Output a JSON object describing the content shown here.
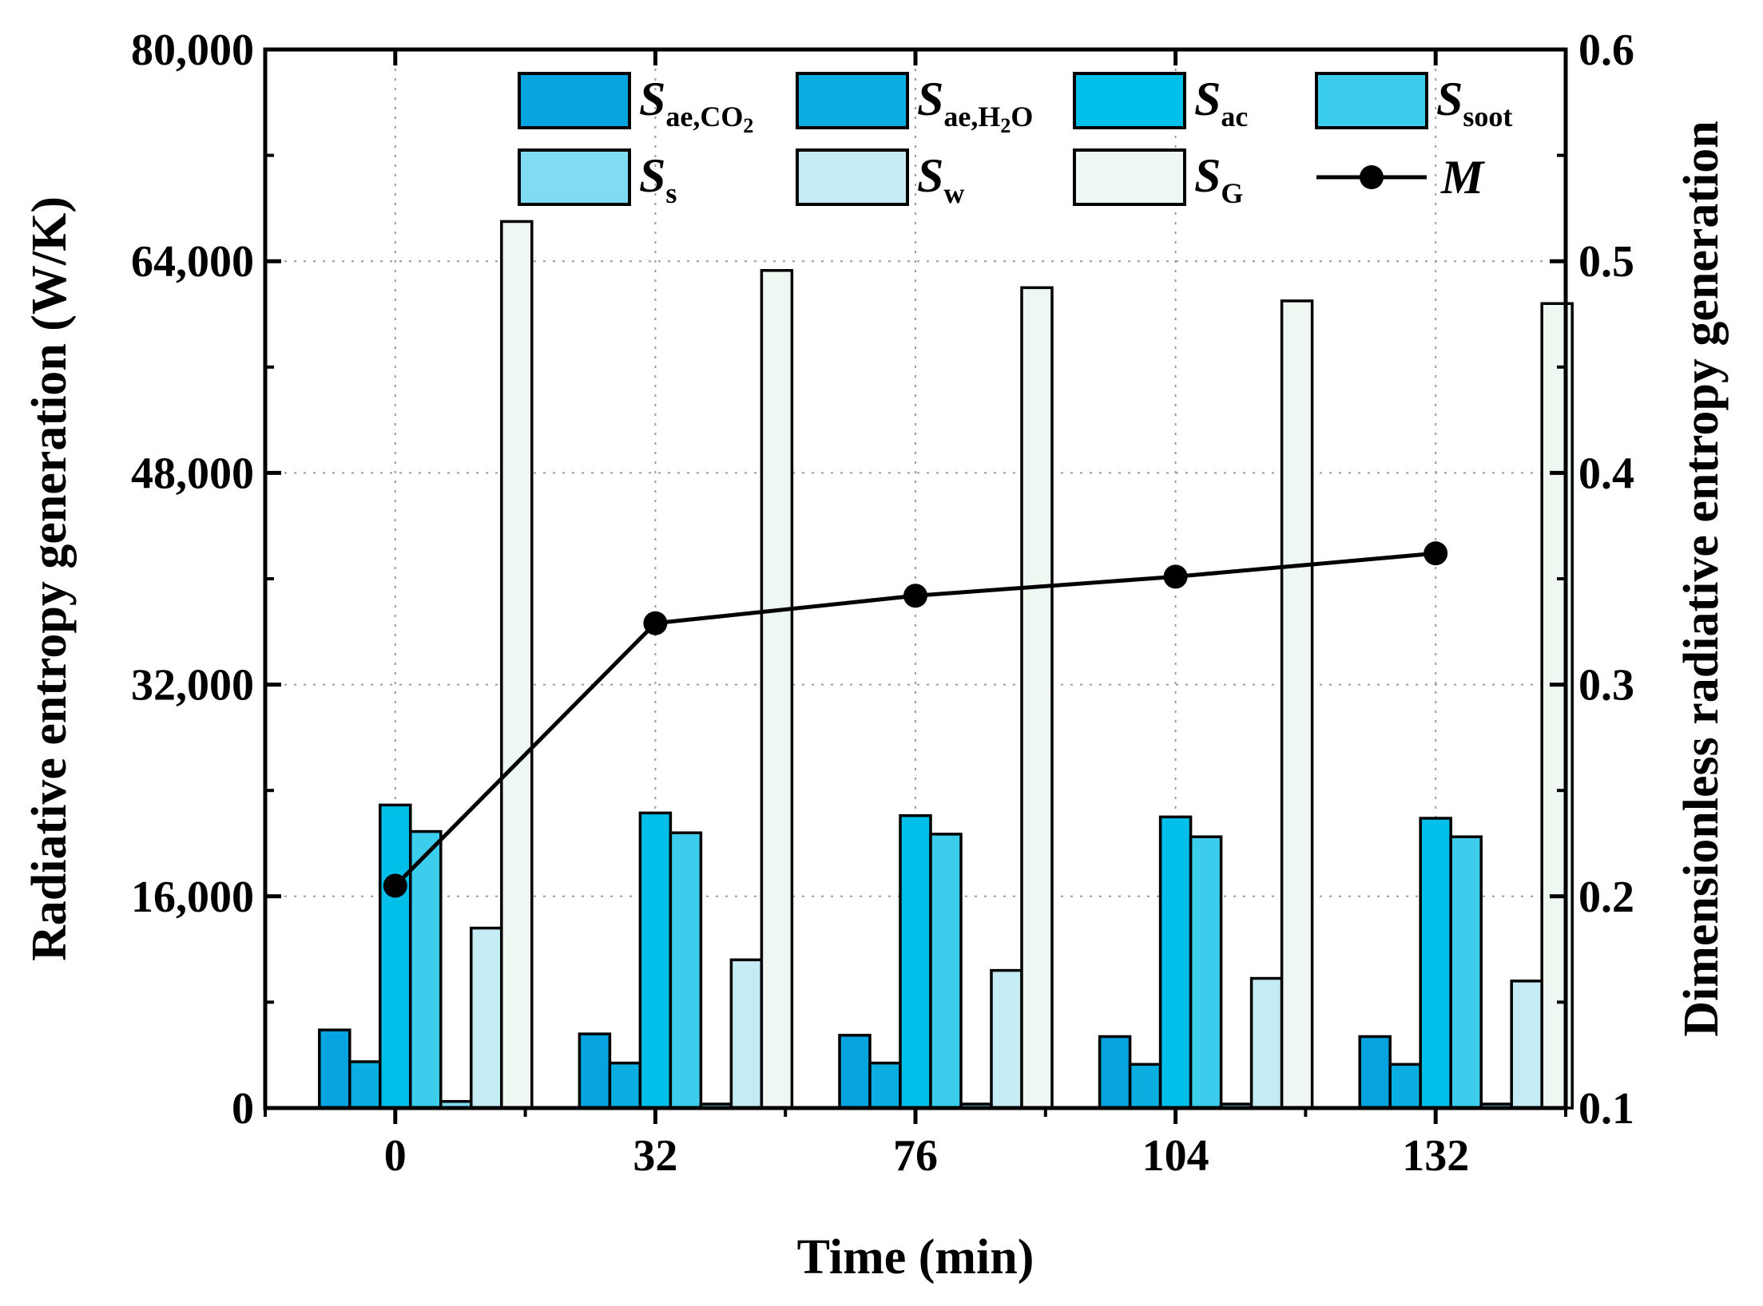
{
  "chart_data": {
    "type": "bar",
    "xlabel": "Time (min)",
    "ylabel": "Radiative entropy generation (W/K)",
    "y2label": "Dimensionless radiative entropy generation",
    "categories": [
      "0",
      "32",
      "76",
      "104",
      "132"
    ],
    "ylim": [
      0,
      80000
    ],
    "yticks": [
      0,
      16000,
      32000,
      48000,
      64000,
      80000
    ],
    "ytick_labels": [
      "0",
      "16,000",
      "32,000",
      "48,000",
      "64,000",
      "80,000"
    ],
    "y2lim": [
      0.1,
      0.6
    ],
    "y2ticks": [
      0.1,
      0.2,
      0.3,
      0.4,
      0.5,
      0.6
    ],
    "y2tick_labels": [
      "0.1",
      "0.2",
      "0.3",
      "0.4",
      "0.5",
      "0.6"
    ],
    "grid": true,
    "legend_position": "top",
    "series": [
      {
        "name": "S",
        "sub": "ae,CO",
        "subsub": "2",
        "subtail": "",
        "color": "#05a3e0",
        "values": [
          5900,
          5600,
          5500,
          5400,
          5400
        ]
      },
      {
        "name": "S",
        "sub": "ae,H",
        "subsub": "2",
        "subtail": "O",
        "color": "#0aaee0",
        "values": [
          3500,
          3400,
          3400,
          3300,
          3300
        ]
      },
      {
        "name": "S",
        "sub": "ac",
        "subsub": "",
        "subtail": "",
        "color": "#00bfe9",
        "values": [
          22900,
          22300,
          22100,
          22000,
          21900
        ]
      },
      {
        "name": "S",
        "sub": "soot",
        "subsub": "",
        "subtail": "",
        "color": "#3ccdec",
        "values": [
          20900,
          20800,
          20700,
          20500,
          20500
        ]
      },
      {
        "name": "S",
        "sub": "s",
        "subsub": "",
        "subtail": "",
        "color": "#7fdcf2",
        "values": [
          500,
          300,
          300,
          300,
          300
        ]
      },
      {
        "name": "S",
        "sub": "w",
        "subsub": "",
        "subtail": "",
        "color": "#c5ecf4",
        "values": [
          13600,
          11200,
          10400,
          9800,
          9600
        ]
      },
      {
        "name": "S",
        "sub": "G",
        "subsub": "",
        "subtail": "",
        "color": "#eff7f3",
        "values": [
          67000,
          63300,
          62000,
          61000,
          60800
        ]
      }
    ],
    "line_series": {
      "name": "M",
      "axis": "right",
      "values": [
        0.205,
        0.329,
        0.342,
        0.351,
        0.362
      ]
    }
  }
}
